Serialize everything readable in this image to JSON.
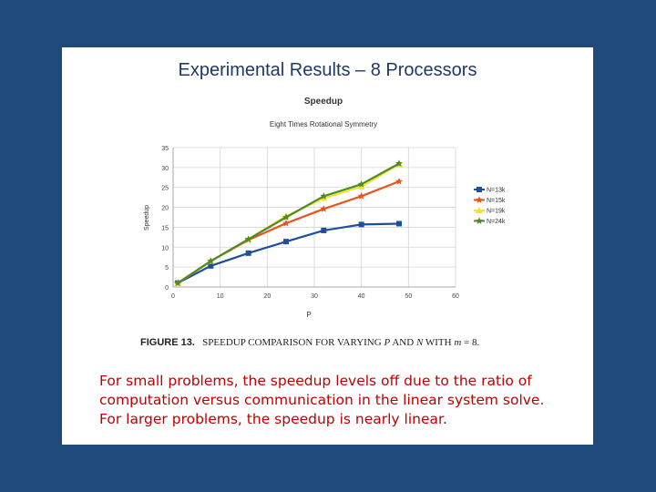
{
  "slide": {
    "title": "Experimental Results – 8 Processors",
    "figure_caption": {
      "label": "FIGURE 13.",
      "text_before_p": "SPEEDUP COMPARISON FOR VARYING",
      "var_p": "P",
      "text_and": "AND",
      "var_n": "N",
      "text_with": "WITH",
      "math": "m",
      "equals_value": "= 8."
    },
    "description_lines": [
      "For small problems, the speedup levels off due to the ratio of",
      "computation versus communication in the linear system solve.",
      "For larger problems, the speedup is nearly linear."
    ]
  },
  "chart_data": {
    "type": "line",
    "title": "Speedup",
    "subtitle": "Eight Times Rotational Symmetry",
    "xlabel": "P",
    "ylabel": "Speedup",
    "xlim": [
      0,
      60
    ],
    "ylim": [
      0,
      35
    ],
    "xticks": [
      0,
      10,
      20,
      30,
      40,
      50,
      60
    ],
    "yticks": [
      0,
      5,
      10,
      15,
      20,
      25,
      30,
      35
    ],
    "grid": true,
    "legend_position": "right",
    "series": [
      {
        "name": "N=13k",
        "color": "#1f4e9c",
        "marker": "square",
        "x": [
          1,
          8,
          16,
          24,
          32,
          40,
          48
        ],
        "y": [
          1,
          5.3,
          8.5,
          11.4,
          14.2,
          15.7,
          15.9
        ]
      },
      {
        "name": "N=15k",
        "color": "#e8541e",
        "marker": "star",
        "x": [
          1,
          8,
          16,
          24,
          32,
          40,
          48
        ],
        "y": [
          1,
          6.5,
          11.8,
          16,
          19.6,
          22.8,
          26.5
        ]
      },
      {
        "name": "N=19k",
        "color": "#f2e42a",
        "marker": "triangle",
        "x": [
          1,
          8,
          16,
          24,
          32,
          40,
          48
        ],
        "y": [
          1,
          6.5,
          12,
          17.8,
          22.3,
          25.2,
          30.8
        ]
      },
      {
        "name": "N=24k",
        "color": "#4f8a2a",
        "marker": "star",
        "x": [
          1,
          8,
          16,
          24,
          32,
          40,
          48
        ],
        "y": [
          1,
          6.5,
          12,
          17.5,
          22.8,
          25.8,
          31
        ]
      }
    ]
  }
}
